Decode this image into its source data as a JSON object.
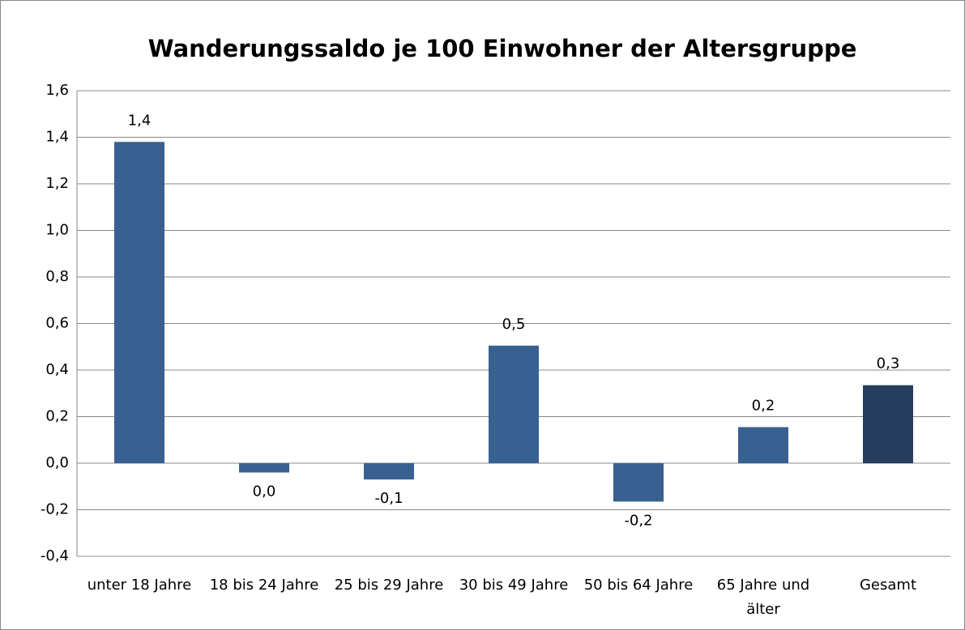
{
  "chart_data": {
    "type": "bar",
    "title": "Wanderungssaldo je 100 Einwohner der Altersgruppe",
    "categories": [
      "unter 18 Jahre",
      "18 bis 24 Jahre",
      "25 bis 29 Jahre",
      "30 bis 49 Jahre",
      "50 bis 64 Jahre",
      "65 Jahre und älter",
      "Gesamt"
    ],
    "values": [
      1.38,
      -0.04,
      -0.07,
      0.505,
      -0.165,
      0.155,
      0.335
    ],
    "value_labels": [
      "1,4",
      "0,0",
      "-0,1",
      "0,5",
      "-0,2",
      "0,2",
      "0,3"
    ],
    "colors": [
      "#386192",
      "#386192",
      "#386192",
      "#386192",
      "#386192",
      "#386192",
      "#253e5f"
    ],
    "ylim": [
      -0.4,
      1.6
    ],
    "yticks": [
      {
        "value": -0.4,
        "label": "-0,4"
      },
      {
        "value": -0.2,
        "label": "-0,2"
      },
      {
        "value": 0,
        "label": "0,0"
      },
      {
        "value": 0.2,
        "label": "0,2"
      },
      {
        "value": 0.4,
        "label": "0,4"
      },
      {
        "value": 0.6,
        "label": "0,6"
      },
      {
        "value": 0.8,
        "label": "0,8"
      },
      {
        "value": 1.0,
        "label": "1,0"
      },
      {
        "value": 1.2,
        "label": "1,2"
      },
      {
        "value": 1.4,
        "label": "1,4"
      },
      {
        "value": 1.6,
        "label": "1,6"
      }
    ],
    "grid": true
  }
}
